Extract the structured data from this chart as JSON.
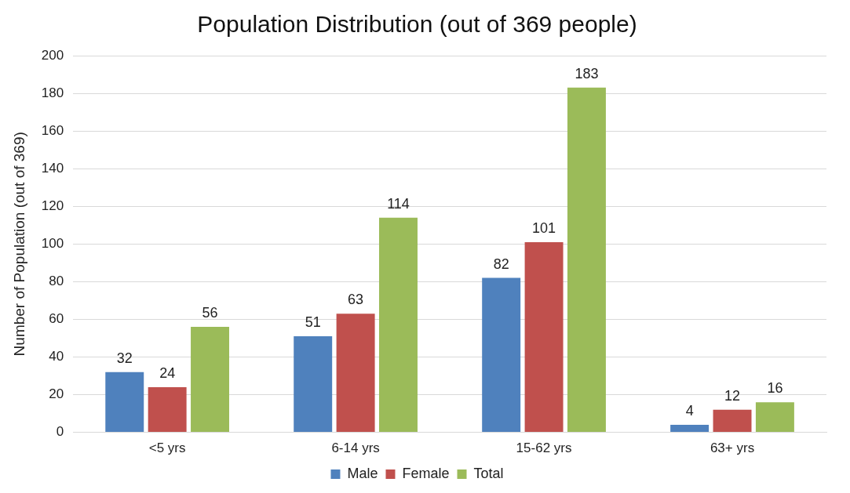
{
  "chart_data": {
    "type": "bar",
    "title": "Population Distribution (out of 369 people)",
    "ylabel": "Number of Population (out of 369)",
    "categories": [
      "<5 yrs",
      "6-14 yrs",
      "15-62 yrs",
      "63+ yrs"
    ],
    "series": [
      {
        "name": "Male",
        "color": "#4f81bd",
        "values": [
          32,
          51,
          82,
          4
        ]
      },
      {
        "name": "Female",
        "color": "#c0504d",
        "values": [
          24,
          63,
          101,
          12
        ]
      },
      {
        "name": "Total",
        "color": "#9bbb59",
        "values": [
          56,
          114,
          183,
          16
        ]
      }
    ],
    "ylim": [
      0,
      200
    ],
    "yticks": [
      0,
      20,
      40,
      60,
      80,
      100,
      120,
      140,
      160,
      180,
      200
    ],
    "grid": "y",
    "legend": "bottom",
    "data_labels": true
  }
}
